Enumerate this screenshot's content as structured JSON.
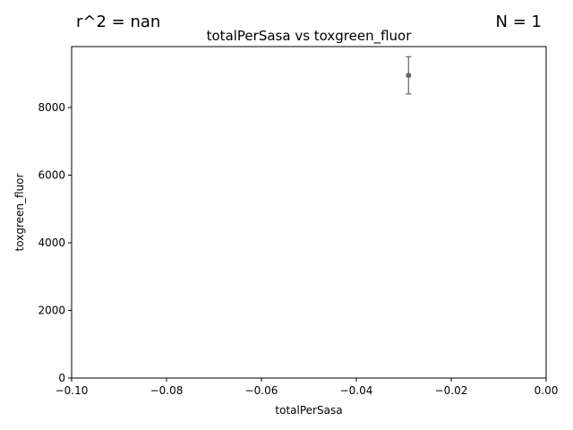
{
  "header": {
    "r2_text": "r^2 = nan",
    "n_text": "N = 1"
  },
  "chart_data": {
    "type": "scatter",
    "title": "totalPerSasa vs toxgreen_fluor",
    "xlabel": "totalPerSasa",
    "ylabel": "toxgreen_fluor",
    "xlim": [
      -0.1,
      0.0
    ],
    "ylim": [
      0,
      9800
    ],
    "grid": false,
    "x_ticks": [
      -0.1,
      -0.08,
      -0.06,
      -0.04,
      -0.02,
      0.0
    ],
    "x_tick_labels": [
      "−0.10",
      "−0.08",
      "−0.06",
      "−0.04",
      "−0.02",
      "0.00"
    ],
    "y_ticks": [
      0,
      2000,
      4000,
      6000,
      8000
    ],
    "y_tick_labels": [
      "0",
      "2000",
      "4000",
      "6000",
      "8000"
    ],
    "points": [
      {
        "x": -0.029,
        "y": 8950,
        "yerr_low": 8400,
        "yerr_high": 9500
      }
    ],
    "point_color": "#666666"
  }
}
